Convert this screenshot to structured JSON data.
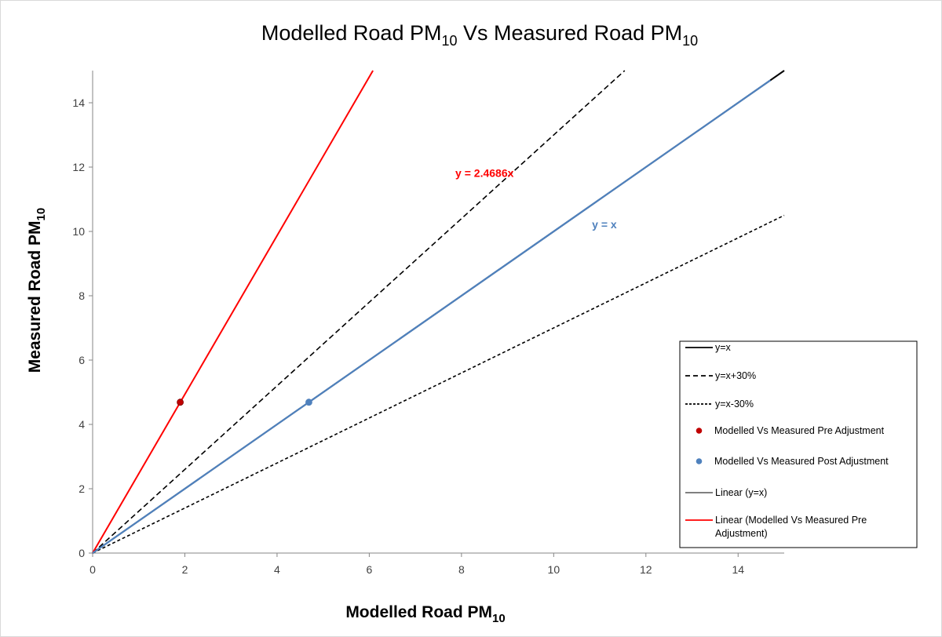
{
  "chart_data": {
    "type": "scatter",
    "title": {
      "main": "Modelled Road PM",
      "sub": "10",
      "mid": " Vs Measured Road PM",
      "sub2": "10"
    },
    "xlabel": {
      "main": "Modelled Road PM",
      "sub": "10"
    },
    "ylabel": {
      "main": "Measured Road PM",
      "sub": "10"
    },
    "xlim": [
      0,
      15
    ],
    "ylim": [
      0,
      15
    ],
    "xticks": [
      0,
      2,
      4,
      6,
      8,
      10,
      12,
      14
    ],
    "yticks": [
      0,
      2,
      4,
      6,
      8,
      10,
      12,
      14
    ],
    "grid": false,
    "legend_position": "lower-right",
    "series": [
      {
        "name": "y=x",
        "kind": "line",
        "style": "solid",
        "color": "#000000",
        "x": [
          0,
          15
        ],
        "y": [
          0,
          15
        ]
      },
      {
        "name": "y=x+30%",
        "kind": "line",
        "style": "dashed",
        "color": "#000000",
        "x": [
          0,
          11.54
        ],
        "y": [
          0,
          15
        ]
      },
      {
        "name": "y=x-30%",
        "kind": "line",
        "style": "dotted",
        "color": "#000000",
        "x": [
          0,
          15
        ],
        "y": [
          0,
          10.5
        ]
      },
      {
        "name": "Modelled Vs Measured Pre Adjustment",
        "kind": "point",
        "color": "#c00000",
        "x": [
          1.9
        ],
        "y": [
          4.69
        ]
      },
      {
        "name": "Modelled Vs Measured Post Adjustment",
        "kind": "point",
        "color": "#4f81bd",
        "x": [
          4.69
        ],
        "y": [
          4.69
        ]
      },
      {
        "name": "Linear (y=x)",
        "kind": "line",
        "style": "solid-thin",
        "color": "#000000",
        "x": [
          0,
          15
        ],
        "y": [
          0,
          15
        ]
      },
      {
        "name": "Linear (Modelled Vs Measured Pre Adjustment)",
        "kind": "line",
        "style": "solid",
        "color": "#ff0000",
        "x": [
          0,
          6.08
        ],
        "y": [
          0,
          15
        ]
      }
    ],
    "post_adjustment_line": {
      "color": "#4f81bd",
      "x": [
        0,
        14.7
      ],
      "y": [
        0,
        14.7
      ]
    },
    "annotations": [
      {
        "text": "y = 2.4686x",
        "color": "#ff0000",
        "x": 8.5,
        "y": 11.7
      },
      {
        "text": "y = x",
        "color": "#4f81bd",
        "x": 11.1,
        "y": 10.1
      }
    ],
    "legend_lines": [
      [
        "y=x"
      ],
      [
        "y=x+30%"
      ],
      [
        "y=x-30%"
      ],
      [
        "Modelled Vs Measured Pre Adjustment"
      ],
      [
        "Modelled Vs Measured Post Adjustment"
      ],
      [
        "Linear (y=x)"
      ],
      [
        "Linear (Modelled Vs Measured Pre",
        "Adjustment)"
      ]
    ]
  }
}
